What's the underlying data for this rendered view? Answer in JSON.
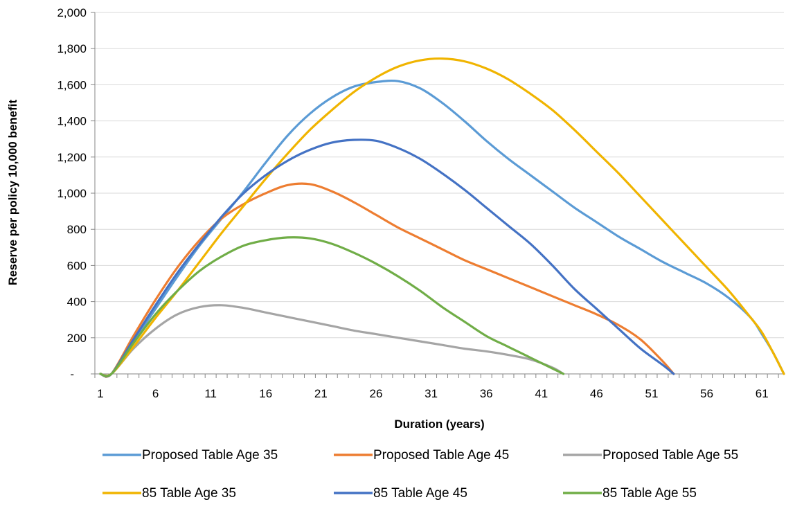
{
  "chart_data": {
    "type": "line",
    "xlabel": "Duration (years)",
    "ylabel": "Reserve per policy 10,000 benefit",
    "xlim": [
      1,
      63
    ],
    "ylim": [
      0,
      2000
    ],
    "x_tick_labels": [
      "1",
      "6",
      "11",
      "16",
      "21",
      "26",
      "31",
      "36",
      "41",
      "46",
      "51",
      "56",
      "61"
    ],
    "y_tick_labels": [
      "-",
      "200",
      "400",
      "600",
      "800",
      "1,000",
      "1,200",
      "1,400",
      "1,600",
      "1,800",
      "2,000"
    ],
    "grid": "horizontal",
    "legend_position": "bottom",
    "series": [
      {
        "name": "Proposed Table Age 35",
        "color": "#5B9BD5",
        "points": [
          [
            1,
            0
          ],
          [
            2,
            0
          ],
          [
            4,
            180
          ],
          [
            6,
            360
          ],
          [
            8,
            540
          ],
          [
            10,
            710
          ],
          [
            12,
            860
          ],
          [
            14,
            1010
          ],
          [
            16,
            1170
          ],
          [
            18,
            1320
          ],
          [
            20,
            1440
          ],
          [
            22,
            1530
          ],
          [
            24,
            1590
          ],
          [
            26,
            1615
          ],
          [
            28,
            1620
          ],
          [
            30,
            1580
          ],
          [
            32,
            1500
          ],
          [
            34,
            1400
          ],
          [
            36,
            1290
          ],
          [
            38,
            1190
          ],
          [
            40,
            1100
          ],
          [
            42,
            1010
          ],
          [
            44,
            920
          ],
          [
            46,
            840
          ],
          [
            48,
            760
          ],
          [
            50,
            690
          ],
          [
            52,
            620
          ],
          [
            54,
            560
          ],
          [
            56,
            500
          ],
          [
            58,
            420
          ],
          [
            60,
            310
          ],
          [
            61,
            220
          ],
          [
            62,
            120
          ],
          [
            63,
            0
          ]
        ]
      },
      {
        "name": "Proposed Table Age 45",
        "color": "#ED7D31",
        "points": [
          [
            1,
            0
          ],
          [
            2,
            0
          ],
          [
            4,
            210
          ],
          [
            6,
            410
          ],
          [
            8,
            590
          ],
          [
            10,
            740
          ],
          [
            12,
            860
          ],
          [
            14,
            940
          ],
          [
            16,
            1000
          ],
          [
            18,
            1045
          ],
          [
            20,
            1050
          ],
          [
            22,
            1010
          ],
          [
            24,
            950
          ],
          [
            26,
            880
          ],
          [
            28,
            810
          ],
          [
            30,
            750
          ],
          [
            32,
            690
          ],
          [
            34,
            630
          ],
          [
            36,
            580
          ],
          [
            38,
            530
          ],
          [
            40,
            480
          ],
          [
            42,
            430
          ],
          [
            44,
            380
          ],
          [
            46,
            330
          ],
          [
            48,
            270
          ],
          [
            50,
            190
          ],
          [
            52,
            70
          ],
          [
            53,
            0
          ]
        ]
      },
      {
        "name": "Proposed Table Age 55",
        "color": "#A5A5A5",
        "points": [
          [
            1,
            0
          ],
          [
            2,
            0
          ],
          [
            4,
            140
          ],
          [
            6,
            250
          ],
          [
            8,
            330
          ],
          [
            10,
            370
          ],
          [
            12,
            380
          ],
          [
            14,
            365
          ],
          [
            16,
            340
          ],
          [
            18,
            315
          ],
          [
            20,
            290
          ],
          [
            22,
            265
          ],
          [
            24,
            240
          ],
          [
            26,
            220
          ],
          [
            28,
            200
          ],
          [
            30,
            180
          ],
          [
            32,
            160
          ],
          [
            34,
            140
          ],
          [
            36,
            125
          ],
          [
            38,
            105
          ],
          [
            40,
            80
          ],
          [
            42,
            35
          ],
          [
            43,
            0
          ]
        ]
      },
      {
        "name": "85 Table Age 35",
        "color": "#F0B400",
        "points": [
          [
            1,
            0
          ],
          [
            2,
            0
          ],
          [
            4,
            150
          ],
          [
            6,
            310
          ],
          [
            8,
            460
          ],
          [
            10,
            620
          ],
          [
            12,
            780
          ],
          [
            14,
            930
          ],
          [
            16,
            1080
          ],
          [
            18,
            1220
          ],
          [
            20,
            1350
          ],
          [
            22,
            1460
          ],
          [
            24,
            1560
          ],
          [
            26,
            1640
          ],
          [
            28,
            1700
          ],
          [
            30,
            1735
          ],
          [
            32,
            1745
          ],
          [
            34,
            1730
          ],
          [
            36,
            1690
          ],
          [
            38,
            1630
          ],
          [
            40,
            1550
          ],
          [
            42,
            1460
          ],
          [
            44,
            1350
          ],
          [
            46,
            1230
          ],
          [
            48,
            1110
          ],
          [
            50,
            980
          ],
          [
            52,
            850
          ],
          [
            54,
            720
          ],
          [
            56,
            590
          ],
          [
            58,
            460
          ],
          [
            60,
            310
          ],
          [
            61,
            230
          ],
          [
            62,
            120
          ],
          [
            63,
            0
          ]
        ]
      },
      {
        "name": "85 Table Age 45",
        "color": "#4472C4",
        "points": [
          [
            1,
            0
          ],
          [
            2,
            0
          ],
          [
            4,
            190
          ],
          [
            6,
            380
          ],
          [
            8,
            560
          ],
          [
            10,
            720
          ],
          [
            12,
            870
          ],
          [
            14,
            1000
          ],
          [
            16,
            1100
          ],
          [
            18,
            1180
          ],
          [
            20,
            1240
          ],
          [
            22,
            1280
          ],
          [
            24,
            1295
          ],
          [
            26,
            1290
          ],
          [
            28,
            1250
          ],
          [
            30,
            1190
          ],
          [
            32,
            1110
          ],
          [
            34,
            1020
          ],
          [
            36,
            920
          ],
          [
            38,
            820
          ],
          [
            40,
            720
          ],
          [
            42,
            600
          ],
          [
            44,
            470
          ],
          [
            46,
            360
          ],
          [
            48,
            250
          ],
          [
            50,
            140
          ],
          [
            52,
            50
          ],
          [
            53,
            0
          ]
        ]
      },
      {
        "name": "85 Table Age 55",
        "color": "#70AD47",
        "points": [
          [
            1,
            0
          ],
          [
            2,
            0
          ],
          [
            4,
            170
          ],
          [
            6,
            330
          ],
          [
            8,
            460
          ],
          [
            10,
            570
          ],
          [
            12,
            650
          ],
          [
            14,
            710
          ],
          [
            16,
            740
          ],
          [
            18,
            755
          ],
          [
            20,
            750
          ],
          [
            22,
            720
          ],
          [
            24,
            670
          ],
          [
            26,
            610
          ],
          [
            28,
            540
          ],
          [
            30,
            460
          ],
          [
            32,
            370
          ],
          [
            34,
            290
          ],
          [
            36,
            210
          ],
          [
            38,
            150
          ],
          [
            40,
            90
          ],
          [
            42,
            30
          ],
          [
            43,
            0
          ]
        ]
      }
    ]
  }
}
